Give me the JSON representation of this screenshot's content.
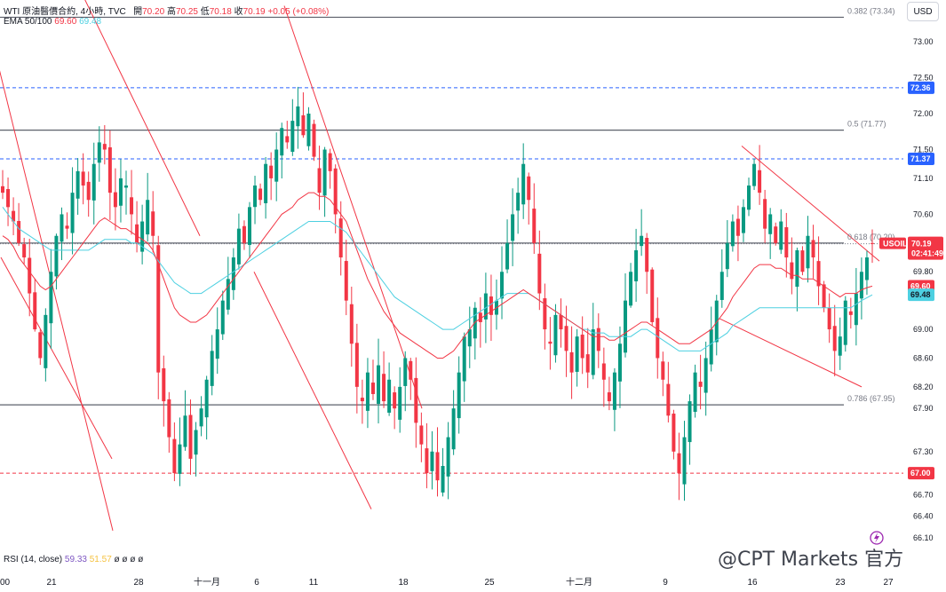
{
  "legend": {
    "title": "WTI 原油醫價合約, 4小時, TVC",
    "open_label": "開",
    "open": "70.20",
    "high_label": "高",
    "high": "70.25",
    "low_label": "低",
    "low": "70.18",
    "close_label": "收",
    "close": "70.19",
    "change": "+0.05 (+0.08%)",
    "ema_label": "EMA 50/100",
    "ema50": "69.60",
    "ema100": "69.48"
  },
  "rsi": {
    "label": "RSI (14, close)",
    "value": "59.33",
    "ma": "51.57",
    "extra": "ø ø ø ø"
  },
  "currency": "USD",
  "watermark": "@CPT Markets 官方",
  "colors": {
    "up": "#089981",
    "down": "#f23645",
    "ema50": "#f23645",
    "ema100": "#4dd0e1",
    "trendline": "#f23645",
    "blue_dash": "#2962ff",
    "fib_line": "#5d606b",
    "rsi": "#7e57c2",
    "rsi_ma": "#f5c242"
  },
  "chart_data": {
    "type": "candlestick",
    "symbol": "USOIL",
    "x_ticks": [
      "00",
      "21",
      "28",
      "十一月",
      "6",
      "11",
      "18",
      "25",
      "十二月",
      "9",
      "16",
      "23",
      "27"
    ],
    "y_ticks": [
      "73.00",
      "72.50",
      "72.00",
      "71.50",
      "71.10",
      "70.60",
      "69.80",
      "69.00",
      "68.60",
      "68.20",
      "67.90",
      "67.30",
      "66.70",
      "66.40",
      "66.10"
    ],
    "ylim": [
      66.1,
      73.34
    ],
    "price_tags": [
      {
        "value": "72.36",
        "kind": "blue"
      },
      {
        "value": "71.37",
        "kind": "blue"
      },
      {
        "value": "70.19",
        "kind": "current",
        "name": "USOIL",
        "countdown": "02:41:49"
      },
      {
        "value": "69.60",
        "kind": "ema50"
      },
      {
        "value": "69.48",
        "kind": "ema100"
      },
      {
        "value": "67.00",
        "kind": "red"
      }
    ],
    "fib_levels": [
      {
        "label": "0.382 (73.34)",
        "price": 73.34
      },
      {
        "label": "0.5 (71.77)",
        "price": 71.77
      },
      {
        "label": "0.618 (70.20)",
        "price": 70.2
      },
      {
        "label": "0.786 (67.95)",
        "price": 67.95
      }
    ],
    "horizontal_lines": [
      {
        "price": 72.36,
        "style": "dashed",
        "color": "blue"
      },
      {
        "price": 71.37,
        "style": "dashed",
        "color": "blue"
      },
      {
        "price": 67.0,
        "style": "dashed",
        "color": "red"
      }
    ],
    "closes": [
      70.9,
      70.7,
      70.5,
      70.2,
      70.0,
      69.5,
      69.0,
      68.6,
      69.2,
      69.8,
      70.3,
      70.6,
      70.4,
      70.9,
      71.2,
      71.0,
      70.8,
      71.3,
      71.6,
      71.5,
      70.9,
      70.7,
      71.1,
      71.0,
      70.6,
      70.2,
      70.5,
      70.8,
      70.3,
      68.4,
      68.0,
      67.5,
      67.0,
      67.4,
      67.8,
      67.2,
      67.6,
      67.9,
      68.3,
      68.7,
      69.0,
      69.4,
      69.7,
      70.0,
      70.4,
      70.2,
      70.7,
      71.0,
      70.8,
      71.3,
      71.1,
      71.5,
      71.8,
      71.6,
      71.9,
      72.1,
      71.7,
      72.0,
      71.4,
      70.9,
      71.5,
      71.2,
      70.6,
      70.0,
      69.4,
      68.8,
      68.2,
      68.0,
      68.4,
      68.1,
      68.5,
      68.0,
      68.3,
      67.9,
      68.2,
      68.6,
      68.3,
      67.7,
      67.4,
      67.0,
      67.3,
      66.9,
      67.1,
      67.5,
      67.9,
      68.4,
      68.9,
      69.0,
      69.3,
      69.1,
      69.5,
      69.2,
      69.4,
      69.8,
      70.2,
      70.6,
      70.9,
      71.3,
      70.8,
      70.2,
      69.5,
      69.0,
      68.8,
      69.2,
      69.0,
      68.7,
      68.4,
      68.9,
      68.6,
      68.4,
      69.0,
      68.7,
      68.3,
      68.0,
      68.4,
      68.8,
      69.4,
      69.8,
      70.1,
      70.3,
      69.8,
      69.1,
      68.6,
      68.3,
      67.8,
      67.3,
      67.0,
      67.5,
      68.0,
      68.4,
      68.2,
      68.6,
      69.0,
      69.4,
      69.8,
      70.2,
      70.5,
      70.3,
      70.7,
      71.0,
      71.3,
      70.9,
      70.4,
      70.6,
      70.2,
      70.5,
      70.0,
      69.7,
      70.1,
      69.8,
      70.3,
      70.0,
      69.6,
      69.3,
      69.0,
      68.7,
      68.9,
      69.4,
      69.2,
      69.5,
      69.8,
      70.0,
      70.19
    ],
    "ema50": [
      70.3,
      70.25,
      70.15,
      70.0,
      69.9,
      69.8,
      69.7,
      69.6,
      69.55,
      69.6,
      69.7,
      69.8,
      69.9,
      70.0,
      70.1,
      70.2,
      70.3,
      70.4,
      70.5,
      70.55,
      70.5,
      70.45,
      70.4,
      70.4,
      70.35,
      70.3,
      70.25,
      70.2,
      70.1,
      69.9,
      69.7,
      69.5,
      69.3,
      69.2,
      69.15,
      69.1,
      69.1,
      69.15,
      69.2,
      69.3,
      69.4,
      69.5,
      69.6,
      69.7,
      69.8,
      69.9,
      70.0,
      70.1,
      70.2,
      70.3,
      70.4,
      70.5,
      70.6,
      70.65,
      70.7,
      70.8,
      70.85,
      70.9,
      70.9,
      70.85,
      70.85,
      70.8,
      70.7,
      70.6,
      70.5,
      70.3,
      70.1,
      69.9,
      69.7,
      69.55,
      69.4,
      69.25,
      69.15,
      69.05,
      68.95,
      68.9,
      68.85,
      68.8,
      68.75,
      68.7,
      68.65,
      68.6,
      68.6,
      68.65,
      68.7,
      68.8,
      68.9,
      69.0,
      69.1,
      69.15,
      69.2,
      69.25,
      69.3,
      69.35,
      69.4,
      69.45,
      69.5,
      69.55,
      69.5,
      69.45,
      69.4,
      69.35,
      69.3,
      69.25,
      69.2,
      69.15,
      69.1,
      69.05,
      69.0,
      68.95,
      68.9,
      68.9,
      68.9,
      68.85,
      68.85,
      68.9,
      68.95,
      69.0,
      69.05,
      69.1,
      69.1,
      69.05,
      69.0,
      68.95,
      68.9,
      68.85,
      68.8,
      68.8,
      68.8,
      68.85,
      68.9,
      68.95,
      69.0,
      69.1,
      69.2,
      69.3,
      69.45,
      69.55,
      69.65,
      69.75,
      69.85,
      69.9,
      69.9,
      69.9,
      69.85,
      69.85,
      69.8,
      69.75,
      69.75,
      69.7,
      69.7,
      69.7,
      69.65,
      69.6,
      69.55,
      69.5,
      69.45,
      69.5,
      69.5,
      69.5,
      69.55,
      69.58,
      69.6
    ],
    "ema100": [
      70.7,
      70.6,
      70.5,
      70.4,
      70.35,
      70.3,
      70.25,
      70.2,
      70.15,
      70.1,
      70.1,
      70.1,
      70.1,
      70.1,
      70.1,
      70.1,
      70.1,
      70.15,
      70.2,
      70.25,
      70.25,
      70.25,
      70.25,
      70.25,
      70.2,
      70.2,
      70.15,
      70.1,
      70.05,
      69.95,
      69.85,
      69.75,
      69.65,
      69.6,
      69.55,
      69.5,
      69.5,
      69.5,
      69.55,
      69.6,
      69.65,
      69.7,
      69.75,
      69.8,
      69.85,
      69.9,
      69.95,
      70.0,
      70.05,
      70.1,
      70.15,
      70.2,
      70.25,
      70.3,
      70.35,
      70.4,
      70.45,
      70.5,
      70.5,
      70.5,
      70.5,
      70.5,
      70.45,
      70.4,
      70.35,
      70.25,
      70.15,
      70.05,
      69.95,
      69.85,
      69.75,
      69.65,
      69.55,
      69.45,
      69.4,
      69.35,
      69.3,
      69.25,
      69.2,
      69.15,
      69.1,
      69.05,
      69.0,
      69.0,
      69.0,
      69.05,
      69.1,
      69.15,
      69.2,
      69.25,
      69.3,
      69.35,
      69.4,
      69.45,
      69.5,
      69.5,
      69.5,
      69.5,
      69.5,
      69.45,
      69.4,
      69.35,
      69.3,
      69.25,
      69.2,
      69.15,
      69.1,
      69.05,
      69.0,
      69.0,
      68.95,
      68.95,
      68.95,
      68.9,
      68.9,
      68.9,
      68.9,
      68.9,
      68.95,
      69.0,
      69.0,
      68.95,
      68.9,
      68.85,
      68.8,
      68.75,
      68.7,
      68.7,
      68.7,
      68.7,
      68.7,
      68.75,
      68.8,
      68.85,
      68.9,
      68.95,
      69.05,
      69.1,
      69.15,
      69.2,
      69.25,
      69.3,
      69.3,
      69.3,
      69.3,
      69.3,
      69.3,
      69.3,
      69.3,
      69.3,
      69.3,
      69.3,
      69.3,
      69.3,
      69.3,
      69.3,
      69.3,
      69.3,
      69.3,
      69.35,
      69.4,
      69.44,
      69.48
    ],
    "trendlines": [
      {
        "from": [
          -0.5,
          72.6
        ],
        "to": [
          127,
          66.2
        ]
      },
      {
        "from": [
          1,
          70.0
        ],
        "to": [
          126,
          67.2
        ]
      },
      {
        "from": [
          95,
          73.6
        ],
        "to": [
          225,
          70.3
        ]
      },
      {
        "from": [
          286,
          69.8
        ],
        "to": [
          418,
          66.5
        ]
      },
      {
        "from": [
          320,
          73.5
        ],
        "to": [
          475,
          67.9
        ]
      },
      {
        "from": [
          835,
          71.55
        ],
        "to": [
          990,
          69.95
        ]
      },
      {
        "from": [
          810,
          69.15
        ],
        "to": [
          970,
          68.2
        ]
      }
    ]
  }
}
